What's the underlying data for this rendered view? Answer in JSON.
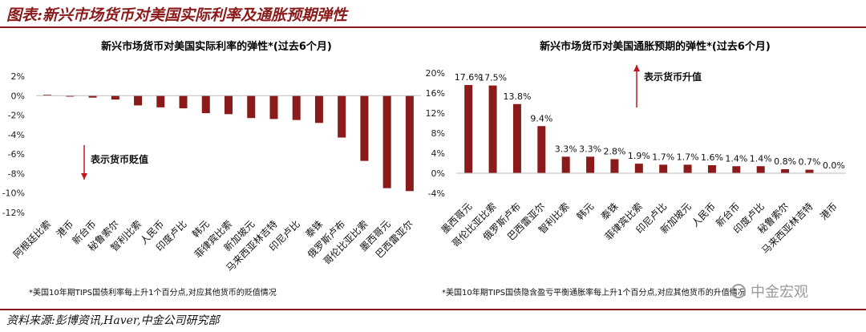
{
  "figure": {
    "title": "图表:新兴市场货币对美国实际利率及通胀预期弹性",
    "source": "资料来源:彭博资讯,Haver,中金公司研究部",
    "watermark": "中金宏观",
    "bar_color": "#8b1a1a",
    "accent_color": "#c0171e"
  },
  "chart_data": [
    {
      "type": "bar",
      "title": "新兴市场货币对美国实际利率的弹性*(过去6个月)",
      "categories": [
        "阿根廷比索",
        "港币",
        "新台币",
        "秘鲁索尔",
        "智利比索",
        "人民币",
        "印度卢比",
        "韩元",
        "菲律宾比索",
        "新加坡元",
        "马来西亚林吉特",
        "印尼卢比",
        "泰铢",
        "俄罗斯卢布",
        "哥伦比亚比索",
        "墨西哥元",
        "巴西雷亚尔"
      ],
      "values": [
        0.1,
        -0.1,
        -0.2,
        -0.4,
        -1.0,
        -1.2,
        -1.3,
        -1.8,
        -1.9,
        -2.3,
        -2.4,
        -2.5,
        -2.8,
        -4.3,
        -6.7,
        -9.5,
        -9.8
      ],
      "ylim": [
        -12,
        2
      ],
      "yticks": [
        2,
        0,
        -2,
        -4,
        -6,
        -8,
        -10,
        -12
      ],
      "ytick_labels": [
        "2%",
        "0%",
        "-2%",
        "-4%",
        "-6%",
        "-8%",
        "-10%",
        "-12%"
      ],
      "annotation": "表示货币贬值",
      "footnote": "*美国10年期TIPS国债利率每上升1个百分点,对应其他货币的贬值情况",
      "grid": false,
      "legend": "none"
    },
    {
      "type": "bar",
      "title": "新兴市场货币对美国通胀预期的弹性*(过去6个月)",
      "categories": [
        "墨西哥元",
        "哥伦比亚比索",
        "俄罗斯卢布",
        "巴西雷亚尔",
        "智利比索",
        "韩元",
        "泰铢",
        "菲律宾比索",
        "印尼卢比",
        "新加坡元",
        "人民币",
        "新台币",
        "印度卢比",
        "秘鲁索尔",
        "马来西亚林吉特",
        "港币"
      ],
      "values": [
        17.6,
        17.5,
        13.8,
        9.4,
        3.3,
        3.3,
        2.8,
        1.9,
        1.7,
        1.7,
        1.6,
        1.4,
        1.4,
        0.8,
        0.7,
        0.0
      ],
      "data_labels": [
        "17.6%",
        "17.5%",
        "13.8%",
        "9.4%",
        "3.3%",
        "3.3%",
        "2.8%",
        "1.9%",
        "1.7%",
        "1.7%",
        "1.6%",
        "1.4%",
        "1.4%",
        "0.8%",
        "0.7%",
        "0.0%"
      ],
      "ylim": [
        -4,
        20
      ],
      "yticks": [
        20,
        16,
        12,
        8,
        4,
        0,
        -4
      ],
      "ytick_labels": [
        "20%",
        "16%",
        "12%",
        "8%",
        "4%",
        "0%",
        "-4%"
      ],
      "annotation": "表示货币升值",
      "footnote": "*美国10年期TIPS国债隐含盈亏平衡通胀率每上升1个百分点,对应其他货币的升值情况",
      "grid": false,
      "legend": "none"
    }
  ]
}
